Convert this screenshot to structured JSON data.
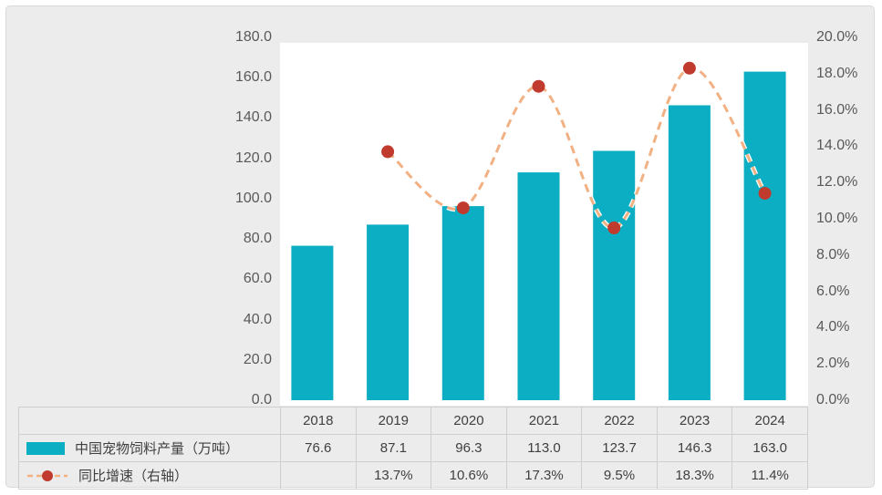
{
  "chart_data": {
    "type": "combo-bar-line",
    "title": "",
    "categories": [
      "2018",
      "2019",
      "2020",
      "2021",
      "2022",
      "2023",
      "2024"
    ],
    "series": [
      {
        "name": "中国宠物饲料产量（万吨）",
        "type": "bar",
        "axis": "left",
        "color": "#0caec3",
        "values": [
          76.6,
          87.1,
          96.3,
          113.0,
          123.7,
          146.3,
          163.0
        ],
        "value_labels": [
          "76.6",
          "87.1",
          "96.3",
          "113.0",
          "123.7",
          "146.3",
          "163.0"
        ]
      },
      {
        "name": "同比增速（右轴）",
        "type": "line",
        "axis": "right",
        "line_color": "#f2b183",
        "line_halo_color": "#ffffff",
        "marker_color": "#c03a2e",
        "line_style": "dashed",
        "smooth": true,
        "values": [
          null,
          13.7,
          10.6,
          17.3,
          9.5,
          18.3,
          11.4
        ],
        "value_labels": [
          "",
          "13.7%",
          "10.6%",
          "17.3%",
          "9.5%",
          "18.3%",
          "11.4%"
        ]
      }
    ],
    "left_axis": {
      "min": 0,
      "max": 180,
      "step": 20,
      "tick_labels": [
        "0.0",
        "20.0",
        "40.0",
        "60.0",
        "80.0",
        "100.0",
        "120.0",
        "140.0",
        "160.0",
        "180.0"
      ]
    },
    "right_axis": {
      "min": 0,
      "max": 20,
      "step": 2,
      "tick_labels": [
        "0.0%",
        "2.0%",
        "4.0%",
        "6.0%",
        "8.0%",
        "10.0%",
        "12.0%",
        "14.0%",
        "16.0%",
        "18.0%",
        "20.0%"
      ]
    },
    "grid": false,
    "legend_position": "bottom-table-left",
    "colors": {
      "panel_bg": "#ececec",
      "plot_bg": "#ffffff",
      "panel_border": "#d9d9d9",
      "table_border": "#cfcfcf",
      "axis_text": "#595959",
      "table_text": "#404040"
    }
  }
}
